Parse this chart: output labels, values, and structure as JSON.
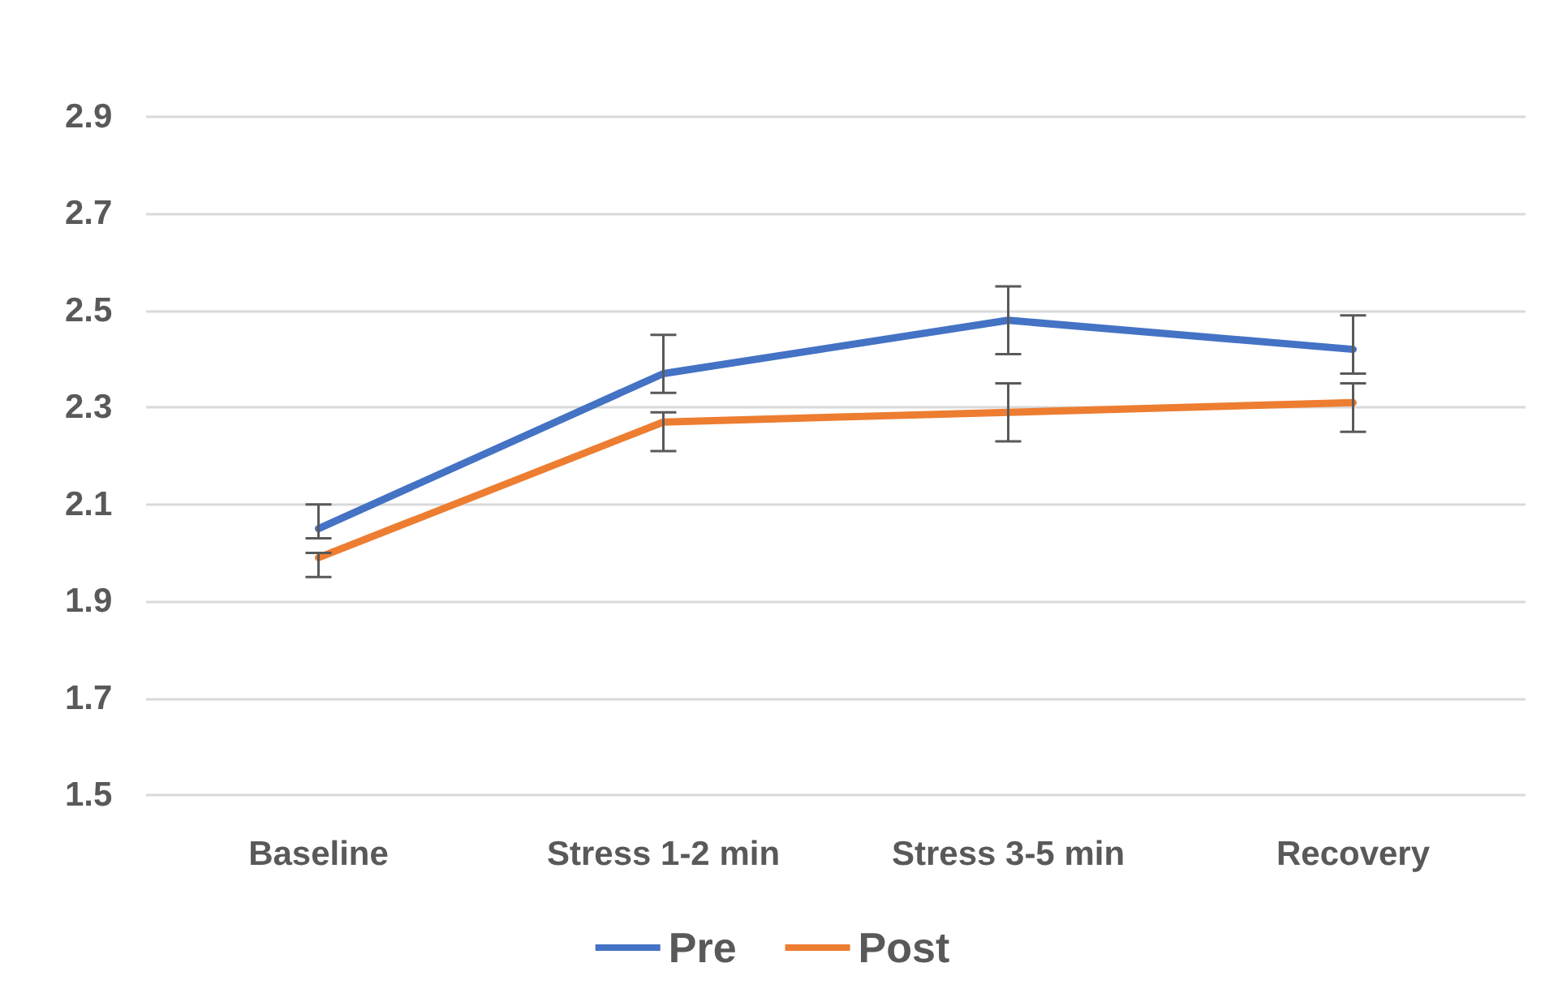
{
  "chart_data": {
    "type": "line",
    "categories": [
      "Baseline",
      "Stress 1-2 min",
      "Stress 3-5 min",
      "Recovery"
    ],
    "series": [
      {
        "name": "Pre",
        "color": "#4472c4",
        "values": [
          2.05,
          2.37,
          2.48,
          2.42
        ],
        "errors": [
          [
            2.03,
            2.1
          ],
          [
            2.33,
            2.45
          ],
          [
            2.41,
            2.55
          ],
          [
            2.37,
            2.49
          ]
        ]
      },
      {
        "name": "Post",
        "color": "#ed7d31",
        "values": [
          1.99,
          2.27,
          2.29,
          2.31
        ],
        "errors": [
          [
            1.95,
            2.0
          ],
          [
            2.21,
            2.29
          ],
          [
            2.23,
            2.35
          ],
          [
            2.25,
            2.35
          ]
        ]
      }
    ],
    "ylim": [
      1.5,
      2.9
    ],
    "yticks": [
      1.5,
      1.7,
      1.9,
      2.1,
      2.3,
      2.5,
      2.7,
      2.9
    ],
    "grid": "y",
    "legend": "bottom",
    "marker": "none",
    "line_style": "solid"
  }
}
